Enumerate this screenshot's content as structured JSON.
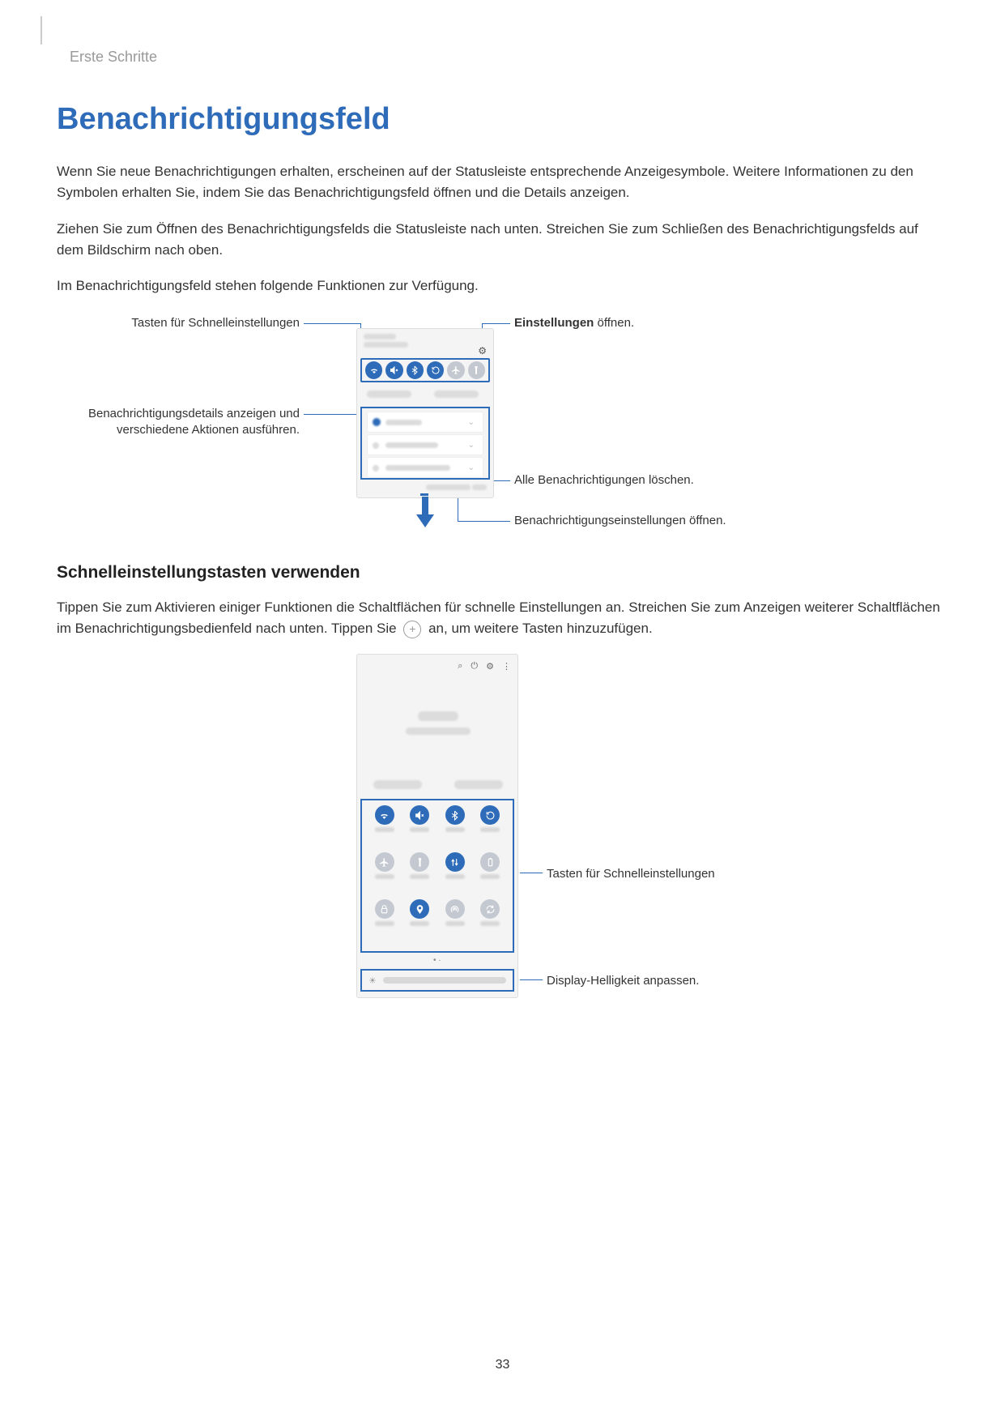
{
  "colors": {
    "accent": "#2e6bb8",
    "qs_active": "#2e6bb8",
    "qs_inactive": "#c4c9d1",
    "icon_fill_white": "#ffffff",
    "panel_bg": "#f4f4f4",
    "text_body": "#333333",
    "text_muted": "#999999"
  },
  "breadcrumb": "Erste Schritte",
  "heading": "Benachrichtigungsfeld",
  "para1": "Wenn Sie neue Benachrichtigungen erhalten, erscheinen auf der Statusleiste entsprechende Anzeigesymbole. Weitere Informationen zu den Symbolen erhalten Sie, indem Sie das Benachrichtigungsfeld öffnen und die Details anzeigen.",
  "para2": "Ziehen Sie zum Öffnen des Benachrichtigungsfelds die Statusleiste nach unten. Streichen Sie zum Schließen des Benachrichtigungsfelds auf dem Bildschirm nach oben.",
  "para3": "Im Benachrichtigungsfeld stehen folgende Funktionen zur Verfügung.",
  "fig1": {
    "label_quick_settings": "Tasten für Schnelleinstellungen",
    "label_settings_open_bold": "Einstellungen",
    "label_settings_open_rest": " öffnen.",
    "label_details": "Benachrichtigungsdetails anzeigen und verschiedene Aktionen ausführen.",
    "label_clear_all": "Alle Benachrichtigungen löschen.",
    "label_notif_settings": "Benachrichtigungseinstellungen öffnen.",
    "icons": [
      {
        "name": "wifi-icon",
        "active": true
      },
      {
        "name": "mute-icon",
        "active": true
      },
      {
        "name": "bluetooth-icon",
        "active": true
      },
      {
        "name": "rotate-icon",
        "active": true
      },
      {
        "name": "airplane-icon",
        "active": false
      },
      {
        "name": "flashlight-icon",
        "active": false
      }
    ]
  },
  "subheading": "Schnelleinstellungstasten verwenden",
  "para4_a": "Tippen Sie zum Aktivieren einiger Funktionen die Schaltflächen für schnelle Einstellungen an. Streichen Sie zum Anzeigen weiterer Schaltflächen im Benachrichtigungsbedienfeld nach unten. Tippen Sie ",
  "para4_b": " an, um weitere Tasten hinzuzufügen.",
  "fig2": {
    "label_quick_settings": "Tasten für Schnelleinstellungen",
    "label_brightness": "Display-Helligkeit anpassen.",
    "grid": [
      {
        "name": "wifi-icon",
        "active": true
      },
      {
        "name": "mute-icon",
        "active": true
      },
      {
        "name": "bluetooth-icon",
        "active": true
      },
      {
        "name": "rotate-icon",
        "active": true
      },
      {
        "name": "airplane-icon",
        "active": false
      },
      {
        "name": "flashlight-icon",
        "active": false
      },
      {
        "name": "data-icon",
        "active": true
      },
      {
        "name": "powersave-icon",
        "active": false
      },
      {
        "name": "dolock-icon",
        "active": false
      },
      {
        "name": "location-icon",
        "active": true
      },
      {
        "name": "hotspot-icon",
        "active": false
      },
      {
        "name": "sync-icon",
        "active": false
      }
    ]
  },
  "page_number": "33"
}
